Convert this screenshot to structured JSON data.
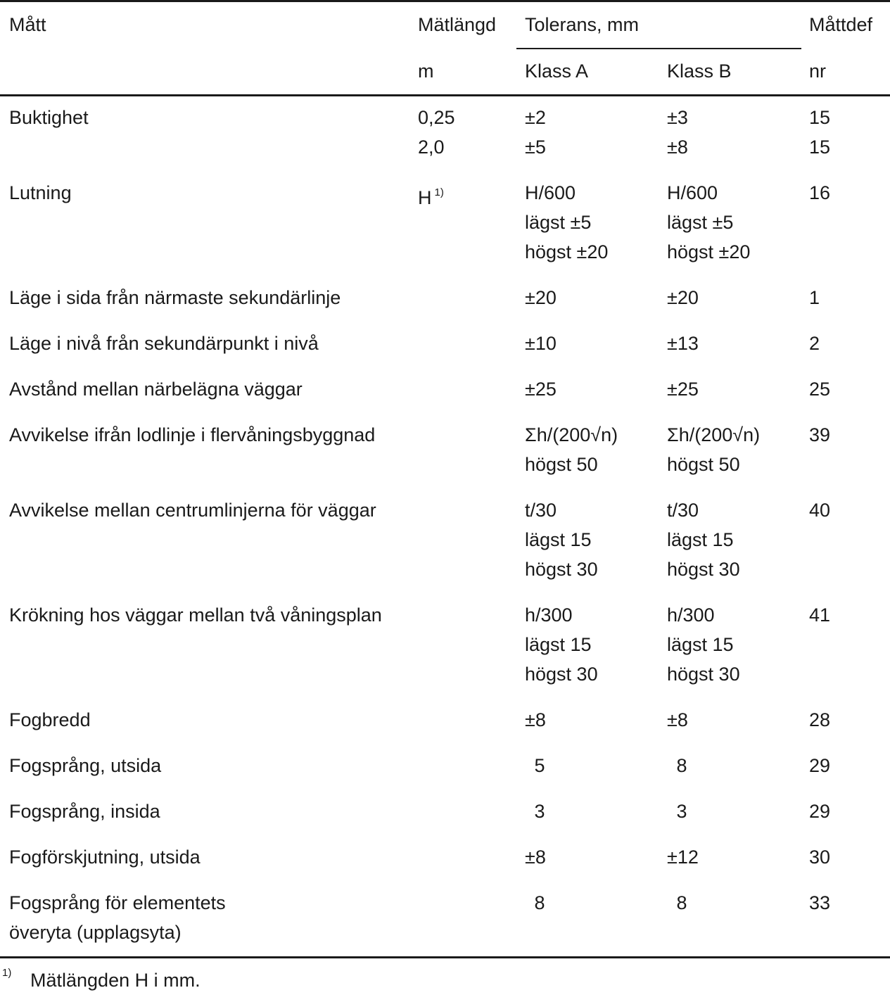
{
  "header": {
    "col1": "Mått",
    "col2_top": "Mätlängd",
    "col2_unit": "m",
    "group_label": "Tolerans, mm",
    "col3": "Klass A",
    "col4": "Klass B",
    "col5_top": "Måttdef",
    "col5_unit": "nr"
  },
  "rows": [
    {
      "label": [
        "Buktighet"
      ],
      "length": [
        "0,25",
        "2,0"
      ],
      "a": [
        "±2",
        "±5"
      ],
      "b": [
        "±3",
        "±8"
      ],
      "nr": [
        "15",
        "15"
      ]
    },
    {
      "label": [
        "Lutning"
      ],
      "length": [
        "H"
      ],
      "length_sup": "1)",
      "a": [
        "H/600",
        "lägst ±5",
        "högst ±20"
      ],
      "b": [
        "H/600",
        "lägst ±5",
        "högst ±20"
      ],
      "nr": [
        "16"
      ]
    },
    {
      "label": [
        "Läge i sida från närmaste sekundärlinje"
      ],
      "length": [],
      "a": [
        "±20"
      ],
      "b": [
        "±20"
      ],
      "nr": [
        "1"
      ]
    },
    {
      "label": [
        "Läge i nivå från sekundärpunkt i nivå"
      ],
      "length": [],
      "a": [
        "±10"
      ],
      "b": [
        "±13"
      ],
      "nr": [
        "2"
      ]
    },
    {
      "label": [
        "Avstånd mellan närbelägna väggar"
      ],
      "length": [],
      "a": [
        "±25"
      ],
      "b": [
        "±25"
      ],
      "nr": [
        "25"
      ]
    },
    {
      "label": [
        "Avvikelse ifrån lodlinje i flervåningsbyggnad"
      ],
      "length": [],
      "a": [
        "Σh/(200√n)",
        "högst 50"
      ],
      "b": [
        "Σh/(200√n)",
        "högst 50"
      ],
      "nr": [
        "39"
      ]
    },
    {
      "label": [
        "Avvikelse mellan centrumlinjerna för väggar"
      ],
      "length": [],
      "a": [
        "t/30",
        "lägst 15",
        "högst 30"
      ],
      "b": [
        "t/30",
        "lägst 15",
        "högst 30"
      ],
      "nr": [
        "40"
      ]
    },
    {
      "label": [
        "Krökning hos väggar mellan två våningsplan"
      ],
      "length": [],
      "a": [
        "h/300",
        "lägst 15",
        "högst 30"
      ],
      "b": [
        "h/300",
        "lägst 15",
        "högst 30"
      ],
      "nr": [
        "41"
      ]
    },
    {
      "label": [
        "Fogbredd"
      ],
      "length": [],
      "a": [
        "±8"
      ],
      "b": [
        "±8"
      ],
      "nr": [
        "28"
      ]
    },
    {
      "label": [
        "Fogsprång, utsida"
      ],
      "length": [],
      "a": [
        " 5"
      ],
      "b": [
        " 8"
      ],
      "nr": [
        "29"
      ]
    },
    {
      "label": [
        "Fogsprång, insida"
      ],
      "length": [],
      "a": [
        " 3"
      ],
      "b": [
        " 3"
      ],
      "nr": [
        "29"
      ]
    },
    {
      "label": [
        "Fogförskjutning, utsida"
      ],
      "length": [],
      "a": [
        "±8"
      ],
      "b": [
        "±12"
      ],
      "nr": [
        "30"
      ]
    },
    {
      "label": [
        "Fogsprång för elementets",
        "överyta (upplagsyta)"
      ],
      "length": [],
      "a": [
        " 8"
      ],
      "b": [
        " 8"
      ],
      "nr": [
        "33"
      ]
    }
  ],
  "footnote": {
    "mark": "1)",
    "text": "Mätlängden H i mm."
  }
}
